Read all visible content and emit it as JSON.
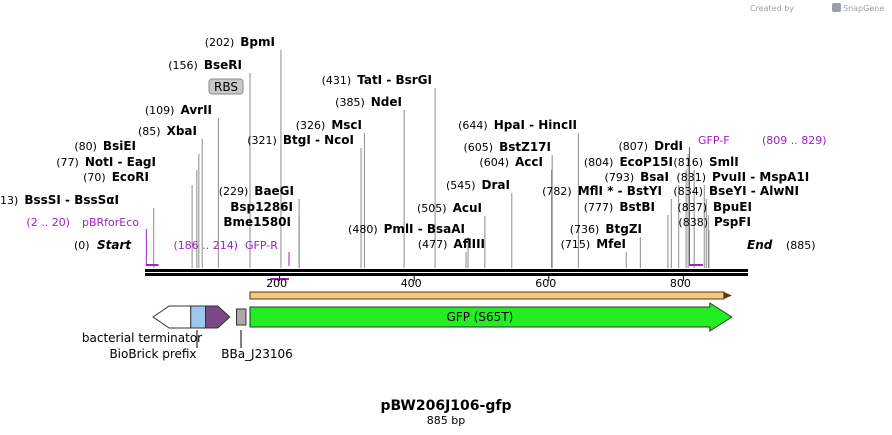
{
  "title": "pBW206J106-gfp",
  "length_label": "885 bp",
  "brand": {
    "created_by": "Created by",
    "name": "SnapGene"
  },
  "ends": {
    "start": {
      "pos": "(0)",
      "label": "Start"
    },
    "end": {
      "pos": "(885)",
      "label": "End"
    }
  },
  "ticks": [
    "200",
    "400",
    "600",
    "800"
  ],
  "rbs_label": "RBS",
  "enzymes": [
    {
      "bp": 202,
      "pos": "(202)",
      "name": "BpmI"
    },
    {
      "bp": 156,
      "pos": "(156)",
      "name": "BseRI"
    },
    {
      "bp": 109,
      "pos": "(109)",
      "name": "AvrII"
    },
    {
      "bp": 85,
      "pos": "(85)",
      "name": "XbaI"
    },
    {
      "bp": 80,
      "pos": "(80)",
      "name": "BsiEI"
    },
    {
      "bp": 77,
      "pos": "(77)",
      "name": "NotI - EagI"
    },
    {
      "bp": 70,
      "pos": "(70)",
      "name": "EcoRI"
    },
    {
      "bp": 13,
      "pos": "(13)",
      "name": "BssSI - BssSαI"
    },
    {
      "bp": 229,
      "pos": "(229)",
      "name": "BaeGI"
    },
    {
      "bp": 229,
      "pos": "",
      "name": "Bsp1286I"
    },
    {
      "bp": 229,
      "pos": "",
      "name": "Bme1580I"
    },
    {
      "bp": 321,
      "pos": "(321)",
      "name": "BtgI - NcoI"
    },
    {
      "bp": 326,
      "pos": "(326)",
      "name": "MscI"
    },
    {
      "bp": 385,
      "pos": "(385)",
      "name": "NdeI"
    },
    {
      "bp": 431,
      "pos": "(431)",
      "name": "TatI - BsrGI"
    },
    {
      "bp": 480,
      "pos": "(480)",
      "name": "PmlI - BsaAI"
    },
    {
      "bp": 477,
      "pos": "(477)",
      "name": "AflIII"
    },
    {
      "bp": 505,
      "pos": "(505)",
      "name": "AcuI"
    },
    {
      "bp": 545,
      "pos": "(545)",
      "name": "DraI"
    },
    {
      "bp": 604,
      "pos": "(604)",
      "name": "AccI"
    },
    {
      "bp": 605,
      "pos": "(605)",
      "name": "BstZ17I"
    },
    {
      "bp": 644,
      "pos": "(644)",
      "name": "HpaI - HincII"
    },
    {
      "bp": 715,
      "pos": "(715)",
      "name": "MfeI"
    },
    {
      "bp": 736,
      "pos": "(736)",
      "name": "BtgZI"
    },
    {
      "bp": 777,
      "pos": "(777)",
      "name": "BstBI"
    },
    {
      "bp": 782,
      "pos": "(782)",
      "name": "MflI * - BstYI"
    },
    {
      "bp": 793,
      "pos": "(793)",
      "name": "BsaI"
    },
    {
      "bp": 804,
      "pos": "(804)",
      "name": "EcoP15I"
    },
    {
      "bp": 807,
      "pos": "(807)",
      "name": "DrdI"
    },
    {
      "bp": 816,
      "pos": "(816)",
      "name": "SmlI"
    },
    {
      "bp": 831,
      "pos": "(831)",
      "name": "PvuII - MspA1I"
    },
    {
      "bp": 834,
      "pos": "(834)",
      "name": "BseYI - AlwNI"
    },
    {
      "bp": 837,
      "pos": "(837)",
      "name": "BpuEI"
    },
    {
      "bp": 838,
      "pos": "(838)",
      "name": "PspFI"
    }
  ],
  "primers": [
    {
      "name": "pBRforEco",
      "range": "(2 .. 20)",
      "start_bp": 2,
      "end_bp": 20
    },
    {
      "name": "GFP-R",
      "range": "(186 .. 214)",
      "start_bp": 186,
      "end_bp": 214
    },
    {
      "name": "GFP-F",
      "range": "(809 .. 829)",
      "start_bp": 809,
      "end_bp": 829
    }
  ],
  "features": [
    {
      "name": "bacterial terminator",
      "start_bp": 12,
      "end_bp": 68,
      "color": "#ffffff"
    },
    {
      "name": "BioBrick prefix",
      "start_bp": 68,
      "end_bp": 90,
      "color": "#9dc7f0"
    },
    {
      "name": "",
      "start_bp": 90,
      "end_bp": 126,
      "color": "#7b4a84"
    },
    {
      "name": "BBa_J23106",
      "start_bp": 136,
      "end_bp": 150,
      "color": "#a9a9a9"
    },
    {
      "name": "GFP (S65T)",
      "start_bp": 156,
      "end_bp": 872,
      "color": "#22ee22"
    }
  ],
  "orf": {
    "start_bp": 156,
    "end_bp": 872,
    "color": "#f5c788"
  },
  "chart_data": {
    "type": "plasmid-linear-map",
    "title": "pBW206J106-gfp",
    "length_bp": 885
  }
}
